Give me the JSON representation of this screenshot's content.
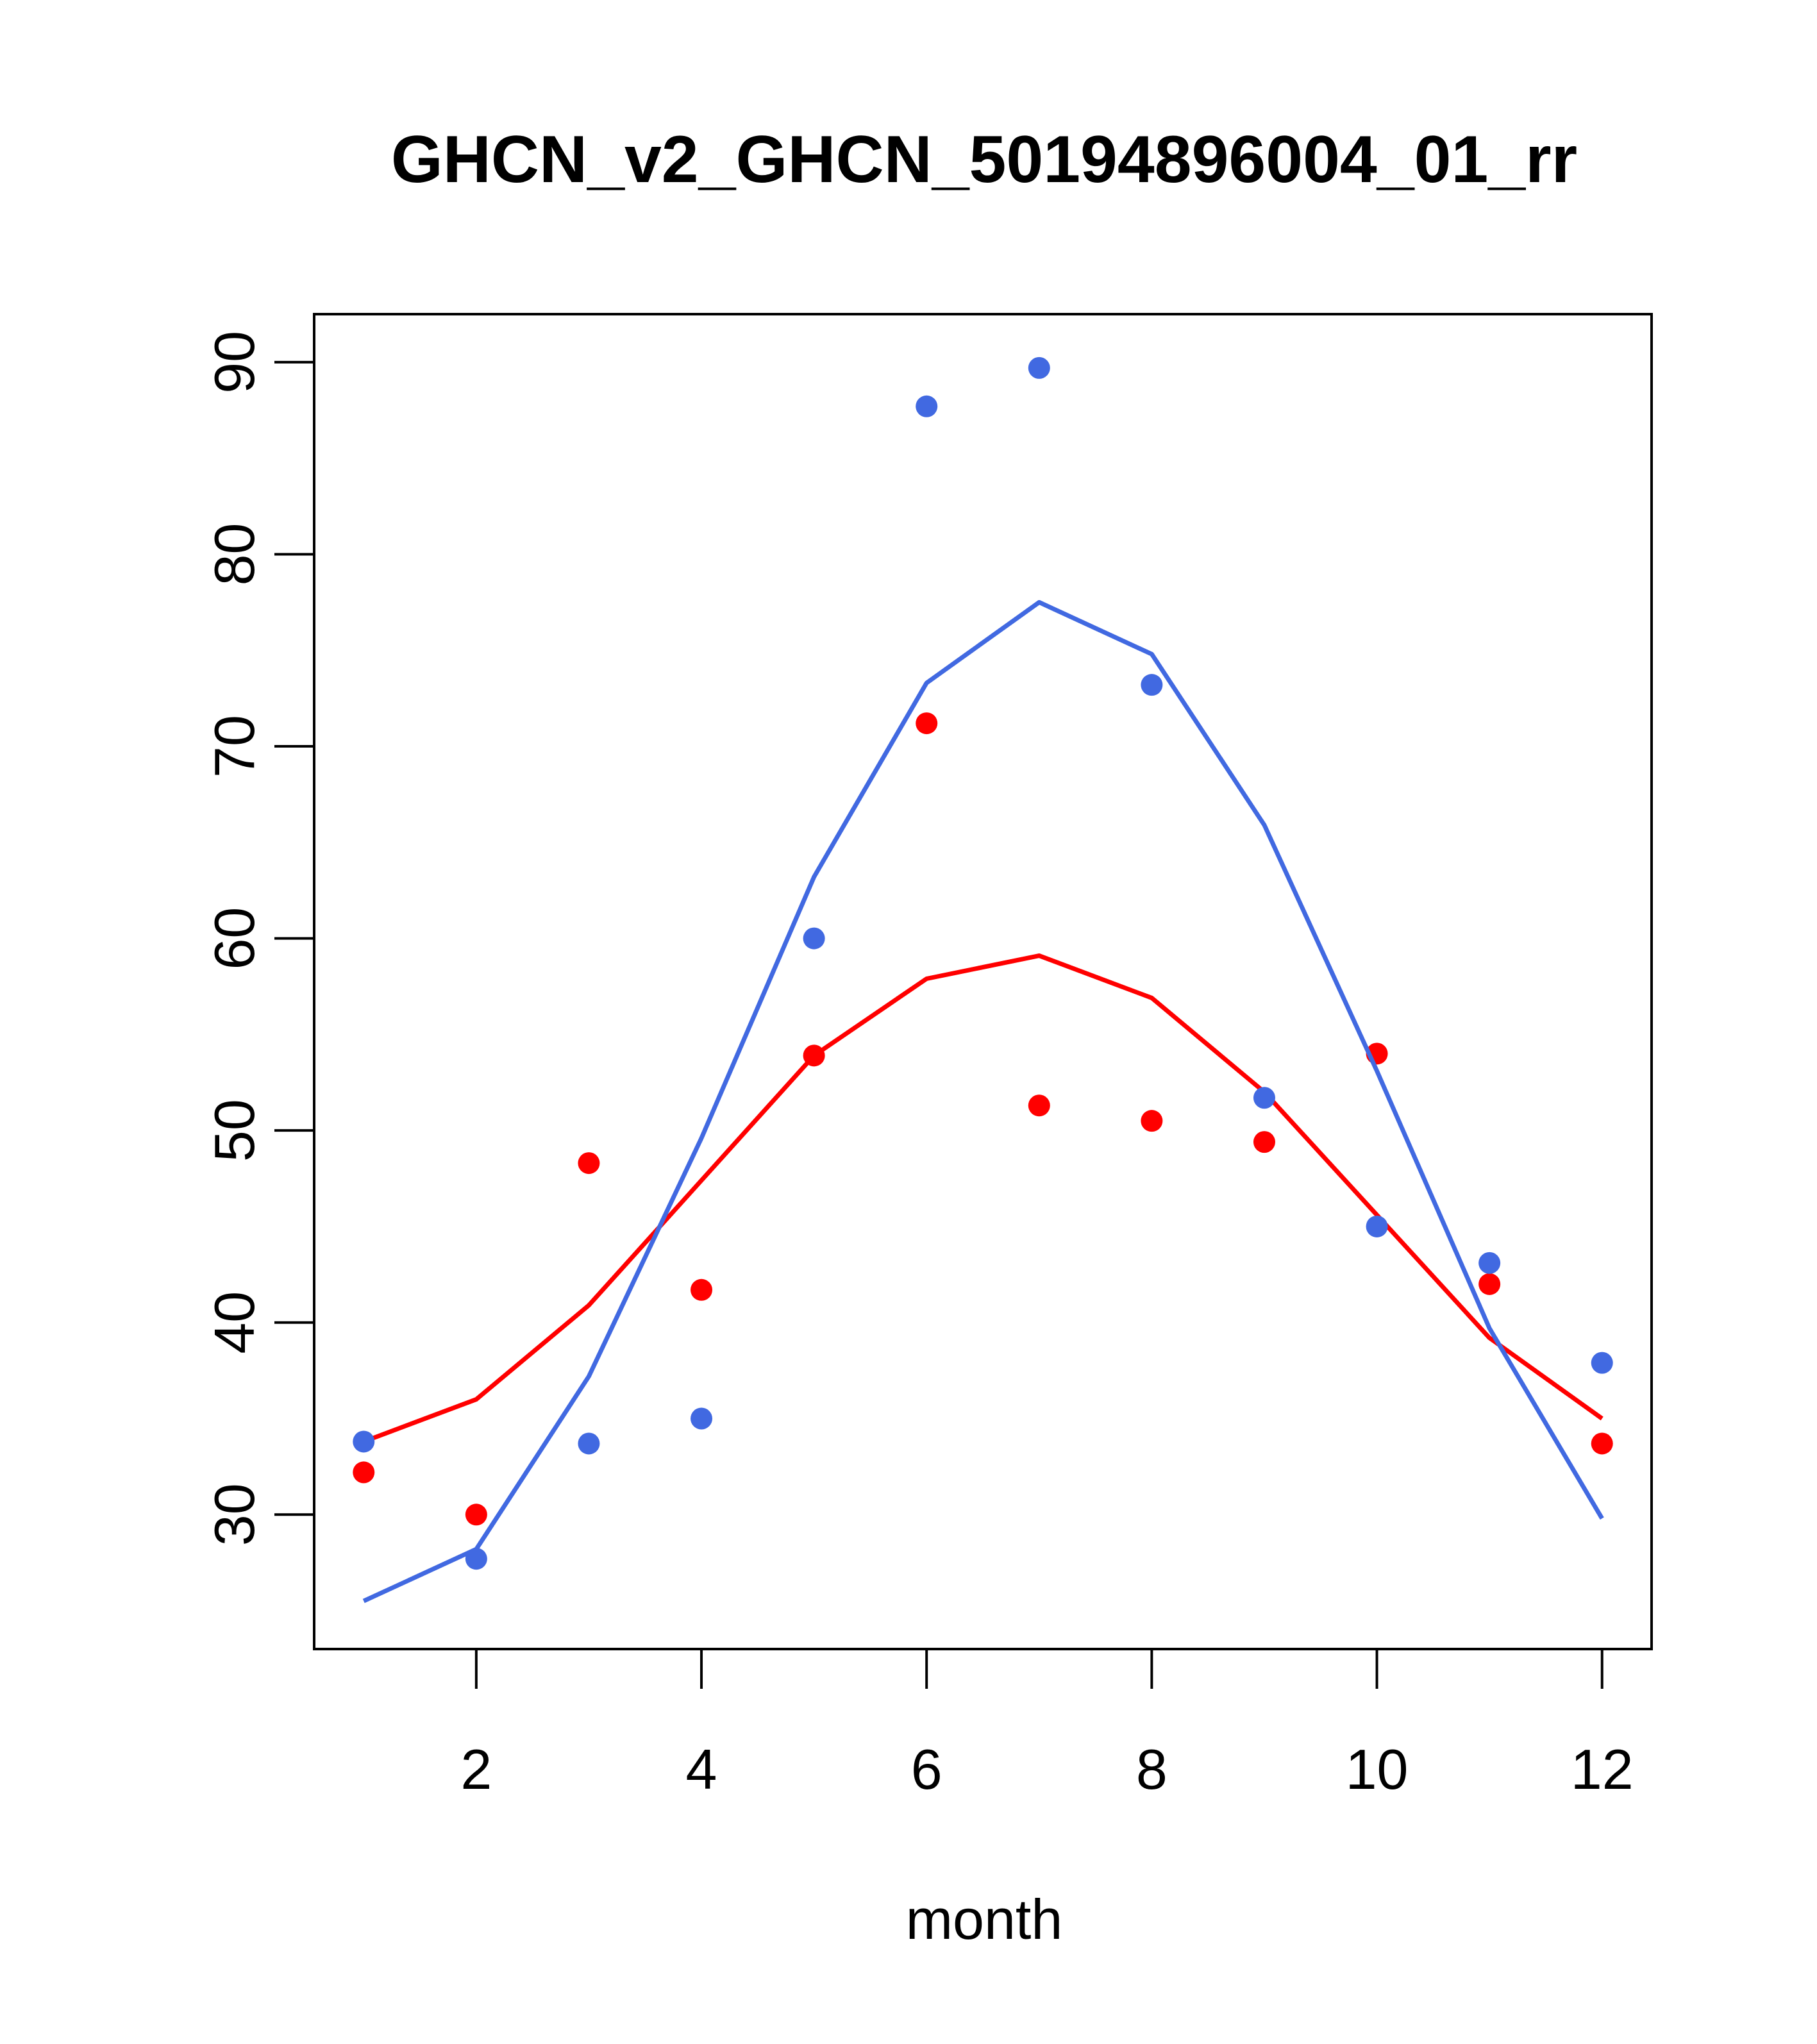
{
  "chart_data": {
    "type": "scatter",
    "title": "GHCN_v2_GHCN_50194896004_01_rr",
    "xlabel": "month",
    "ylabel": "",
    "xlim": [
      0.56,
      12.44
    ],
    "ylim": [
      23,
      92.5
    ],
    "x_ticks": [
      2,
      4,
      6,
      8,
      10,
      12
    ],
    "y_ticks": [
      30,
      40,
      50,
      60,
      70,
      80,
      90
    ],
    "grid": false,
    "legend": "none",
    "series": [
      {
        "kind": "points",
        "color": "#ff0000",
        "x": [
          1,
          2,
          3,
          4,
          5,
          6,
          7,
          8,
          9,
          10,
          11,
          12
        ],
        "values": [
          32.2,
          30.0,
          48.3,
          41.7,
          53.9,
          71.2,
          51.3,
          50.5,
          49.4,
          54.0,
          42.0,
          33.7
        ]
      },
      {
        "kind": "line",
        "color": "#ff0000",
        "x": [
          1,
          2,
          3,
          4,
          5,
          6,
          7,
          8,
          9,
          10,
          11,
          12
        ],
        "values": [
          33.8,
          36.0,
          40.9,
          47.4,
          53.9,
          57.9,
          59.1,
          56.9,
          52.0,
          45.6,
          39.2,
          35.0
        ]
      },
      {
        "kind": "points",
        "color": "#4169e1",
        "x": [
          1,
          2,
          3,
          4,
          5,
          6,
          7,
          8,
          9,
          10,
          11,
          12
        ],
        "values": [
          33.8,
          27.7,
          33.7,
          35.0,
          60.0,
          87.7,
          89.7,
          73.2,
          51.7,
          45.0,
          43.1,
          37.9
        ]
      },
      {
        "kind": "line",
        "color": "#4169e1",
        "x": [
          1,
          2,
          3,
          4,
          5,
          6,
          7,
          8,
          9,
          10,
          11,
          12
        ],
        "values": [
          25.5,
          28.2,
          37.2,
          49.6,
          63.2,
          73.3,
          77.5,
          74.8,
          65.9,
          53.1,
          39.7,
          29.8
        ]
      }
    ]
  }
}
